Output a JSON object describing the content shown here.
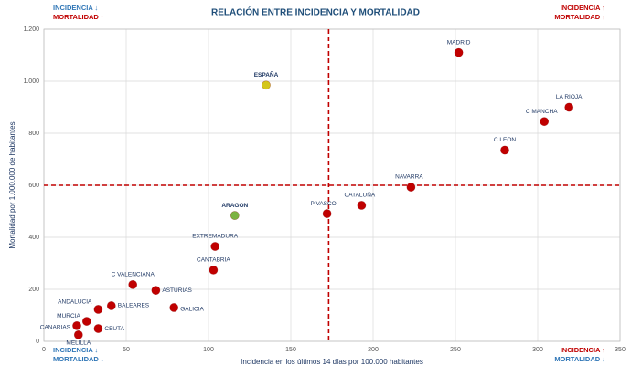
{
  "chart_data": {
    "type": "scatter",
    "title": "RELACIÓN ENTRE INCIDENCIA Y MORTALIDAD",
    "x_label": "Incidencia en los últimos 14 días por 100.000 habitantes",
    "y_label": "Mortalidad por 1.000.000 de habitantes",
    "xlim": [
      0,
      350
    ],
    "xticks": [
      0,
      50,
      100,
      150,
      200,
      250,
      300,
      350
    ],
    "ylim": [
      0,
      1200
    ],
    "yticks": [
      0,
      200,
      400,
      600,
      800,
      {
        "value": 1000,
        "label": "1.000"
      },
      {
        "value": 1200,
        "label": "1.200"
      }
    ],
    "grid": true,
    "reference_lines": {
      "x": 173,
      "y": 600,
      "color": "#c00000"
    },
    "points": [
      {
        "label": "MADRID",
        "x": 252,
        "y": 1110,
        "color": "#c00000"
      },
      {
        "label": "LA RIOJA",
        "x": 319,
        "y": 900,
        "color": "#c00000"
      },
      {
        "label": "C MANCHA",
        "x": 304,
        "y": 845,
        "color": "#c00000"
      },
      {
        "label": "C LEON",
        "x": 280,
        "y": 735,
        "color": "#c00000"
      },
      {
        "label": "NAVARRA",
        "x": 223,
        "y": 593,
        "color": "#c00000"
      },
      {
        "label": "CATALUÑA",
        "x": 193,
        "y": 523,
        "color": "#c00000"
      },
      {
        "label": "P VASCO",
        "x": 172,
        "y": 491,
        "color": "#c00000"
      },
      {
        "label": "ESPAÑA",
        "x": 135,
        "y": 985,
        "color": "#d4c619"
      },
      {
        "label": "ARAGON",
        "x": 116,
        "y": 484,
        "color": "#7cb342"
      },
      {
        "label": "EXTREMADURA",
        "x": 104,
        "y": 365,
        "color": "#c00000"
      },
      {
        "label": "CANTABRIA",
        "x": 103,
        "y": 274,
        "color": "#c00000"
      },
      {
        "label": "C VALENCIANA",
        "x": 54,
        "y": 218,
        "color": "#c00000"
      },
      {
        "label": "ASTURIAS",
        "x": 68,
        "y": 196,
        "color": "#c00000"
      },
      {
        "label": "GALICIA",
        "x": 79,
        "y": 130,
        "color": "#c00000"
      },
      {
        "label": "BALEARES",
        "x": 41,
        "y": 137,
        "color": "#c00000"
      },
      {
        "label": "ANDALUCIA",
        "x": 33,
        "y": 123,
        "color": "#c00000"
      },
      {
        "label": "MURCIA",
        "x": 26,
        "y": 77,
        "color": "#c00000"
      },
      {
        "label": "CANARIAS",
        "x": 20,
        "y": 60,
        "color": "#c00000"
      },
      {
        "label": "CEUTA",
        "x": 33,
        "y": 49,
        "color": "#c00000"
      },
      {
        "label": "MELILLA",
        "x": 21,
        "y": 25,
        "color": "#c00000"
      }
    ],
    "quadrant_labels": [
      {
        "position": "top-left",
        "lines": [
          {
            "text": "INCIDENCIA ↓",
            "color": "#2e75b6"
          },
          {
            "text": "MORTALIDAD ↑",
            "color": "#c00000"
          }
        ]
      },
      {
        "position": "top-right",
        "lines": [
          {
            "text": "INCIDENCIA ↑",
            "color": "#c00000"
          },
          {
            "text": "MORTALIDAD ↑",
            "color": "#c00000"
          }
        ]
      },
      {
        "position": "bottom-left",
        "lines": [
          {
            "text": "INCIDENCIA ↓",
            "color": "#2e75b6"
          },
          {
            "text": "MORTALIDAD ↓",
            "color": "#2e75b6"
          }
        ]
      },
      {
        "position": "bottom-right",
        "lines": [
          {
            "text": "INCIDENCIA ↑",
            "color": "#c00000"
          },
          {
            "text": "MORTALIDAD ↓",
            "color": "#2e75b6"
          }
        ]
      }
    ]
  }
}
